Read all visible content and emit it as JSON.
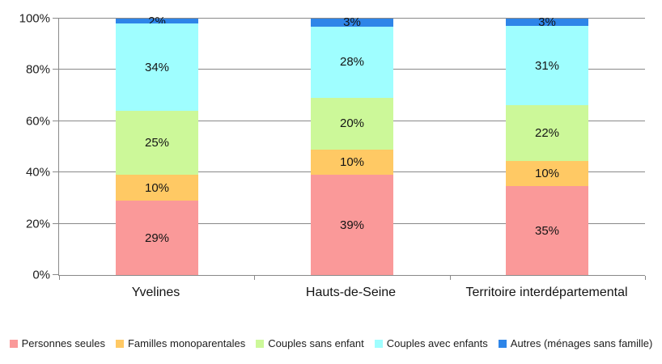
{
  "chart_data": {
    "type": "bar",
    "stacked": true,
    "orientation": "vertical",
    "title": "",
    "xlabel": "",
    "ylabel": "",
    "ylim": [
      0,
      100
    ],
    "grid": "horizontal",
    "gridline_color": "#898989",
    "legend_position": "bottom",
    "value_suffix": "%",
    "y_ticks": [
      "0%",
      "20%",
      "40%",
      "60%",
      "80%",
      "100%"
    ],
    "categories": [
      "Yvelines",
      "Hauts-de-Seine",
      "Territoire interdépartemental"
    ],
    "series": [
      {
        "name": "Personnes seules",
        "color": "#FA9999",
        "values": [
          29,
          39,
          35
        ]
      },
      {
        "name": "Familles monoparentales",
        "color": "#FFC964",
        "values": [
          10,
          10,
          10
        ]
      },
      {
        "name": "Couples sans enfant",
        "color": "#CCF899",
        "values": [
          25,
          20,
          22
        ]
      },
      {
        "name": "Couples avec enfants",
        "color": "#9FFEFF",
        "values": [
          34,
          28,
          31
        ]
      },
      {
        "name": "Autres (ménages sans famille)",
        "color": "#2E85E8",
        "values": [
          2,
          3,
          3
        ]
      }
    ]
  }
}
